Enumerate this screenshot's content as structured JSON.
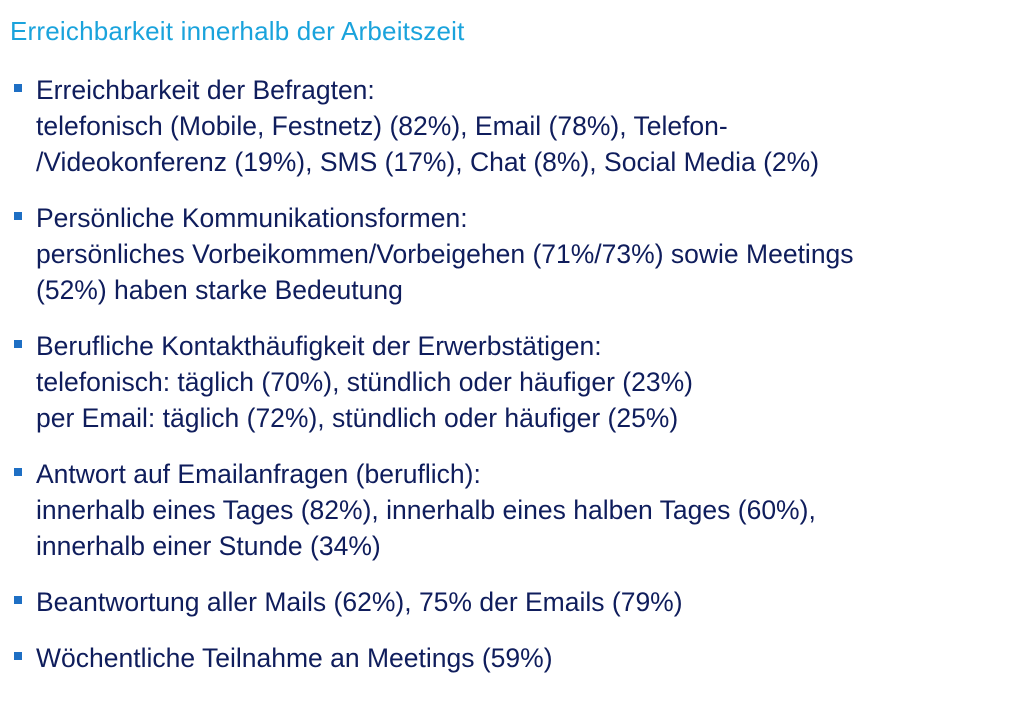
{
  "slide": {
    "title": "Erreichbarkeit innerhalb der Arbeitszeit",
    "bullets": [
      {
        "lines": [
          "Erreichbarkeit der Befragten:",
          "telefonisch (Mobile, Festnetz) (82%), Email (78%), Telefon-",
          "/Videokonferenz (19%), SMS (17%), Chat (8%), Social Media (2%)"
        ]
      },
      {
        "lines": [
          "Persönliche Kommunikationsformen:",
          "persönliches Vorbeikommen/Vorbeigehen (71%/73%) sowie Meetings",
          "(52%) haben starke Bedeutung"
        ]
      },
      {
        "lines": [
          "Berufliche Kontakthäufigkeit der Erwerbstätigen:",
          "telefonisch: täglich (70%), stündlich oder häufiger (23%)",
          "per Email: täglich (72%), stündlich oder häufiger (25%)"
        ]
      },
      {
        "lines": [
          "Antwort auf Emailanfragen (beruflich):",
          "innerhalb eines Tages (82%), innerhalb eines halben Tages (60%),",
          "innerhalb einer Stunde (34%)"
        ]
      },
      {
        "lines": [
          "Beantwortung aller Mails (62%), 75% der Emails (79%)"
        ]
      },
      {
        "lines": [
          "Wöchentliche Teilnahme an Meetings (59%)"
        ]
      }
    ],
    "colors": {
      "title": "#1aa3dc",
      "text": "#0f1d5c",
      "bullet": "#1e6fc4"
    }
  }
}
